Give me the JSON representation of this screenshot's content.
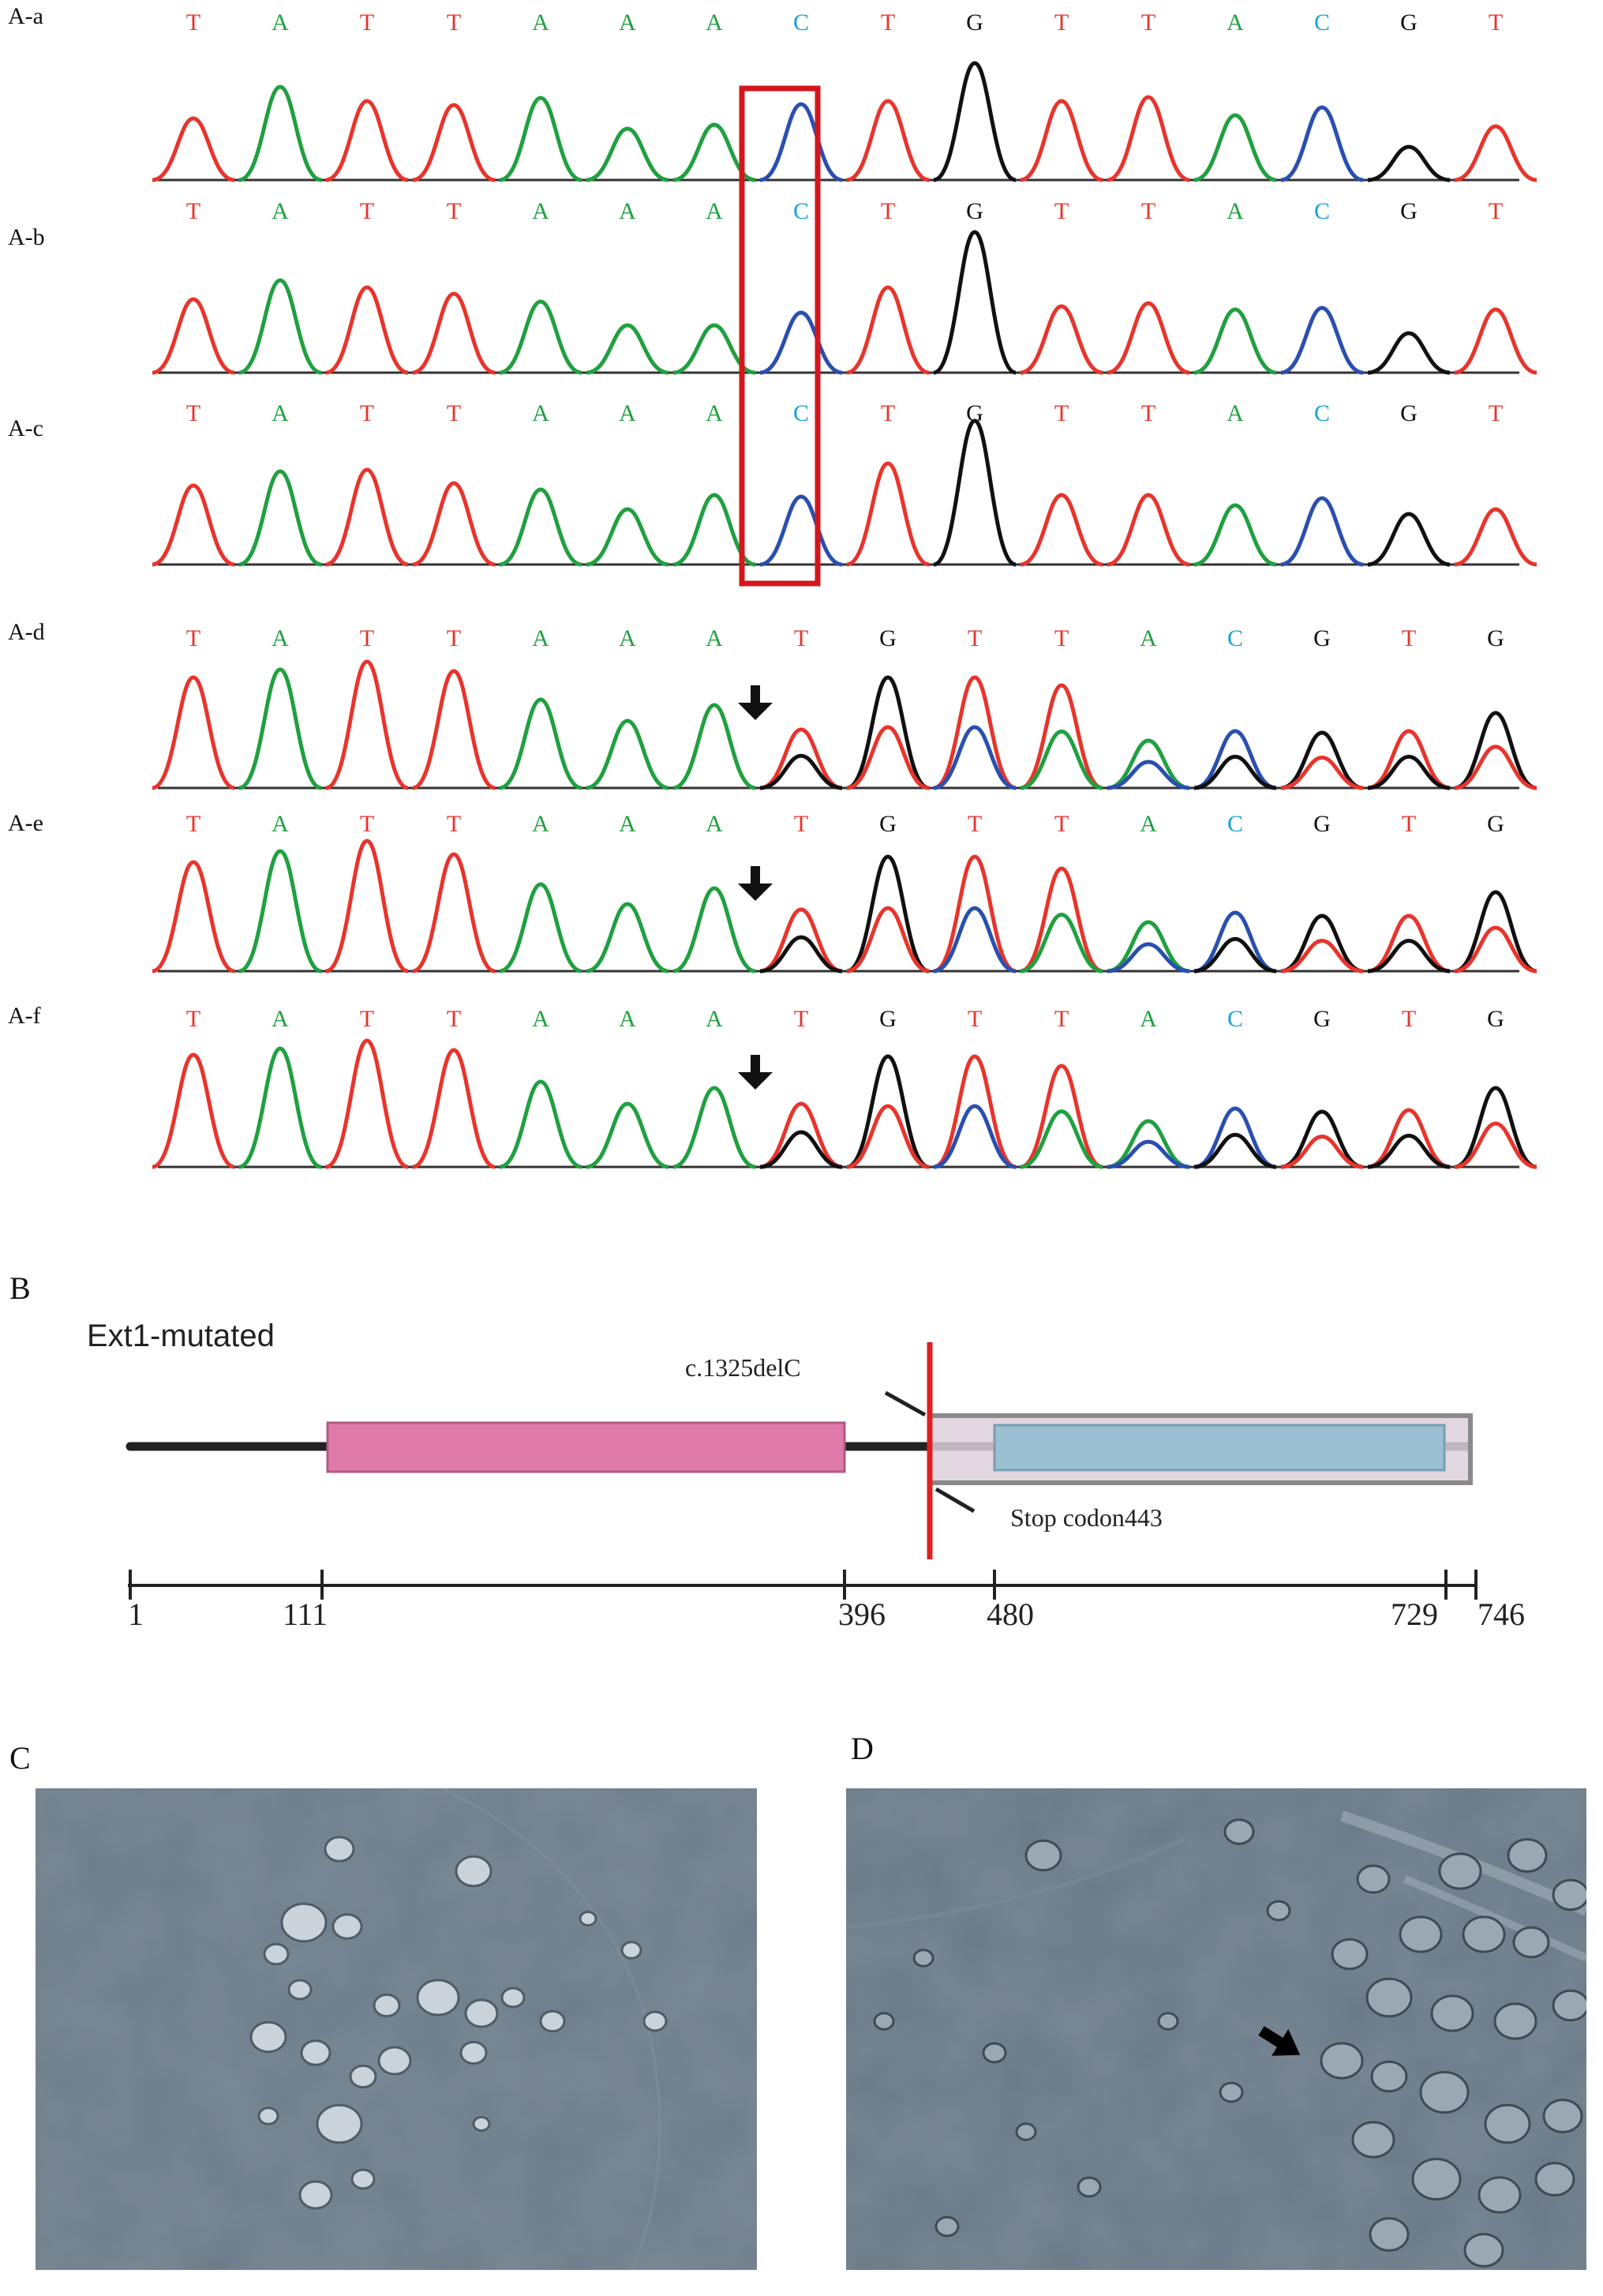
{
  "colors": {
    "A": "#20a040",
    "T": "#e8342c",
    "C": "#2a4fb0",
    "G": "#111111",
    "C_letter": "#1aa3d6",
    "highlight": "#d4171d",
    "domain_pink": "#e07aa8",
    "domain_blue": "#9bbfd3"
  },
  "panel_a": {
    "traces": [
      {
        "label": "A-a",
        "bases": [
          "T",
          "A",
          "T",
          "T",
          "A",
          "A",
          "A",
          "C",
          "T",
          "G",
          "T",
          "T",
          "A",
          "C",
          "G",
          "T"
        ]
      },
      {
        "label": "A-b",
        "bases": [
          "T",
          "A",
          "T",
          "T",
          "A",
          "A",
          "A",
          "C",
          "T",
          "G",
          "T",
          "T",
          "A",
          "C",
          "G",
          "T"
        ]
      },
      {
        "label": "A-c",
        "bases": [
          "T",
          "A",
          "T",
          "T",
          "A",
          "A",
          "A",
          "C",
          "T",
          "G",
          "T",
          "T",
          "A",
          "C",
          "G",
          "T"
        ]
      },
      {
        "label": "A-d",
        "bases": [
          "T",
          "A",
          "T",
          "T",
          "A",
          "A",
          "A",
          "T",
          "G",
          "T",
          "T",
          "A",
          "C",
          "G",
          "T",
          "G"
        ]
      },
      {
        "label": "A-e",
        "bases": [
          "T",
          "A",
          "T",
          "T",
          "A",
          "A",
          "A",
          "T",
          "G",
          "T",
          "T",
          "A",
          "C",
          "G",
          "T",
          "G"
        ]
      },
      {
        "label": "A-f",
        "bases": [
          "T",
          "A",
          "T",
          "T",
          "A",
          "A",
          "A",
          "T",
          "G",
          "T",
          "T",
          "A",
          "C",
          "G",
          "T",
          "G"
        ]
      }
    ]
  },
  "panel_b": {
    "label": "B",
    "title": "Ext1-mutated",
    "mutation_label": "c.1325delC",
    "stop_label": "Stop codon443",
    "ticks": [
      "1",
      "111",
      "396",
      "480",
      "729",
      "746"
    ]
  },
  "panel_c": {
    "label": "C",
    "image": "histology-micrograph"
  },
  "panel_d": {
    "label": "D",
    "image": "histology-micrograph-with-arrow"
  }
}
